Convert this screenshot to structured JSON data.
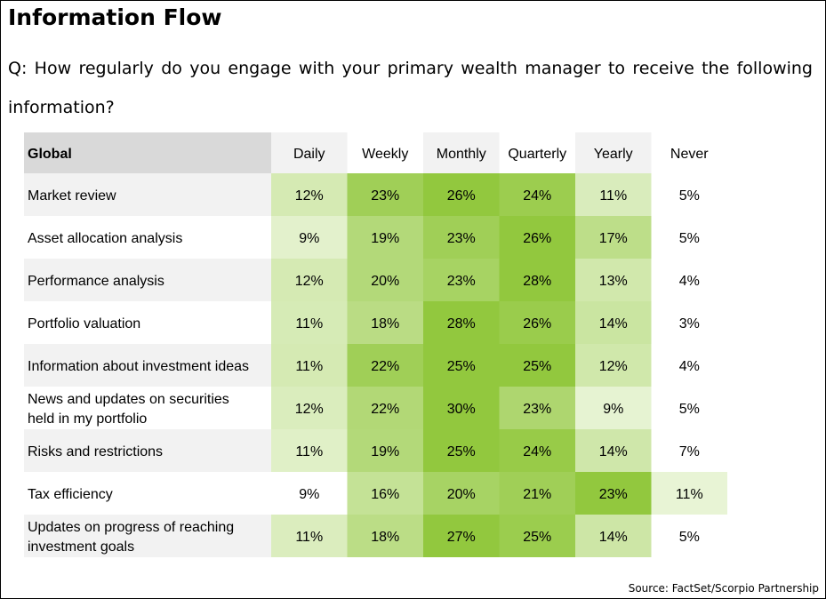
{
  "title": "Information Flow",
  "question": "Q: How regularly do you engage with your primary wealth manager to receive the following information?",
  "source": "Source: FactSet/Scorpio Partnership",
  "chart_data": {
    "type": "heatmap",
    "corner_label": "Global",
    "columns": [
      "Daily",
      "Weekly",
      "Monthly",
      "Quarterly",
      "Yearly",
      "Never"
    ],
    "rows": [
      {
        "label": [
          "Market review"
        ],
        "values": [
          12,
          23,
          26,
          24,
          11,
          5
        ]
      },
      {
        "label": [
          "Asset allocation analysis"
        ],
        "values": [
          9,
          19,
          23,
          26,
          17,
          5
        ]
      },
      {
        "label": [
          "Performance analysis"
        ],
        "values": [
          12,
          20,
          23,
          28,
          13,
          4
        ]
      },
      {
        "label": [
          "Portfolio valuation"
        ],
        "values": [
          11,
          18,
          28,
          26,
          14,
          3
        ]
      },
      {
        "label": [
          "Information about investment ideas"
        ],
        "values": [
          11,
          22,
          25,
          25,
          12,
          4
        ]
      },
      {
        "label": [
          "News and updates on securities",
          "held in my portfolio"
        ],
        "values": [
          12,
          22,
          30,
          23,
          9,
          5
        ]
      },
      {
        "label": [
          "Risks and restrictions"
        ],
        "values": [
          11,
          19,
          25,
          24,
          14,
          7
        ]
      },
      {
        "label": [
          "Tax efficiency"
        ],
        "values": [
          9,
          16,
          20,
          21,
          23,
          11
        ]
      },
      {
        "label": [
          "Updates on progress of reaching",
          "investment goals"
        ],
        "values": [
          11,
          18,
          27,
          25,
          14,
          5
        ]
      }
    ],
    "value_suffix": "%",
    "colors": {
      "header_gray": "#d9d9d9",
      "row_gray": "#f2f2f2",
      "scale_low": "#f6fbee",
      "scale_high": "#92c83e"
    }
  }
}
